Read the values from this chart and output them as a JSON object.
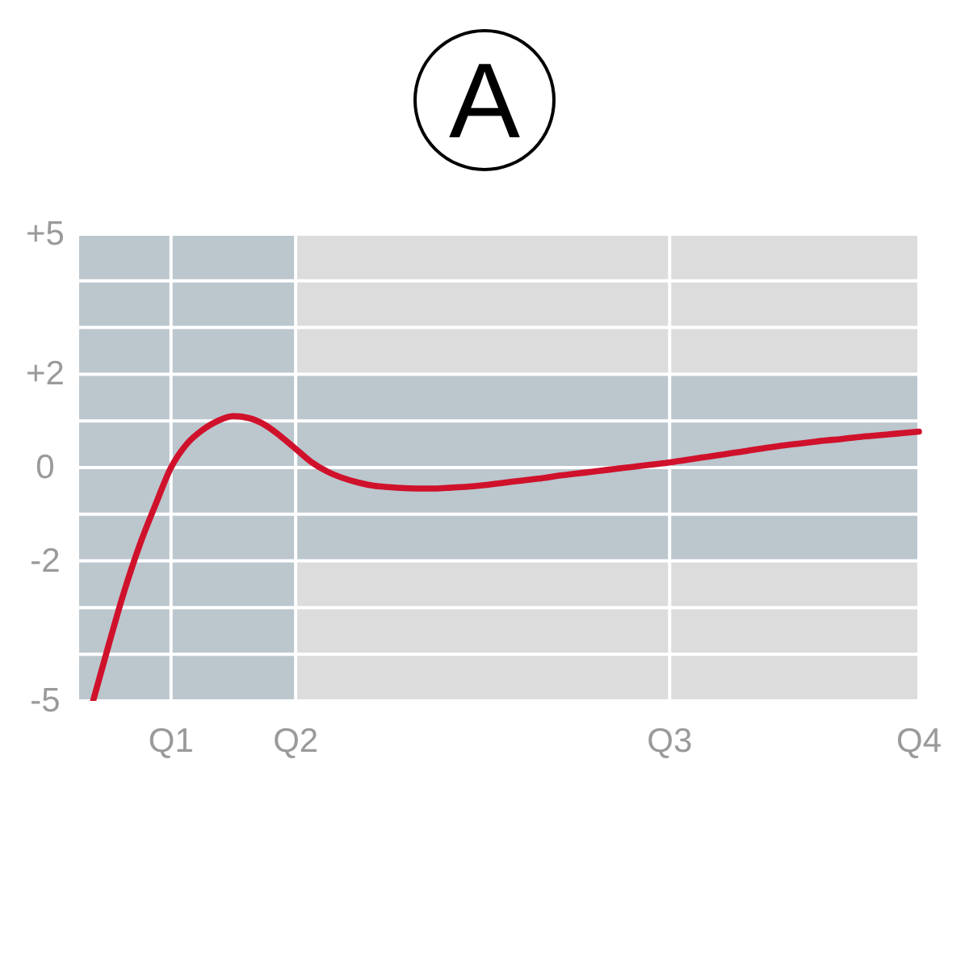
{
  "chart_data": {
    "type": "line",
    "title": "A",
    "categories": [
      null,
      null,
      null,
      null,
      null,
      null,
      "Q1",
      null,
      null,
      null,
      null,
      null,
      null,
      null,
      "Q2",
      null,
      null,
      null,
      null,
      null,
      null,
      null,
      null,
      null,
      null,
      null,
      null,
      null,
      null,
      null,
      null,
      null,
      null,
      null,
      null,
      null,
      null,
      null,
      "Q3",
      null,
      null,
      null,
      null,
      null,
      null,
      null,
      null,
      null,
      null,
      null,
      null,
      null,
      null,
      null,
      "Q4"
    ],
    "series": [
      {
        "color": "#d0112b",
        "values": [
          null,
          -5,
          -3.8,
          -2.65,
          -1.65,
          -0.8,
          0,
          0.5,
          0.8,
          1.0,
          1.1,
          1.06,
          0.92,
          0.68,
          0.4,
          0.12,
          -0.08,
          -0.22,
          -0.32,
          -0.39,
          -0.42,
          -0.44,
          -0.45,
          -0.45,
          -0.43,
          -0.41,
          -0.38,
          -0.34,
          -0.3,
          -0.26,
          -0.22,
          -0.17,
          -0.13,
          -0.09,
          -0.05,
          -0.01,
          0.03,
          0.07,
          0.11,
          0.16,
          0.21,
          0.26,
          0.31,
          0.36,
          0.41,
          0.46,
          0.5,
          0.54,
          0.58,
          0.61,
          0.65,
          0.68,
          0.71,
          0.74,
          0.77
        ]
      }
    ],
    "ylim": [
      -5,
      5
    ],
    "yticks": [
      -5,
      {
        "value": -4,
        "label": null
      },
      {
        "value": -3,
        "label": null
      },
      -2,
      {
        "value": -1,
        "label": null
      },
      0,
      {
        "value": 1,
        "label": null
      },
      {
        "value": 2,
        "label": "+2"
      },
      {
        "value": 3,
        "label": null
      },
      {
        "value": 4,
        "label": null
      },
      {
        "value": 5,
        "label": "+5"
      }
    ],
    "grid": true,
    "line_style": "solid",
    "bands": [
      {
        "axis": "y",
        "from": -2,
        "to": 2,
        "color": "#bbc6cd"
      }
    ]
  }
}
